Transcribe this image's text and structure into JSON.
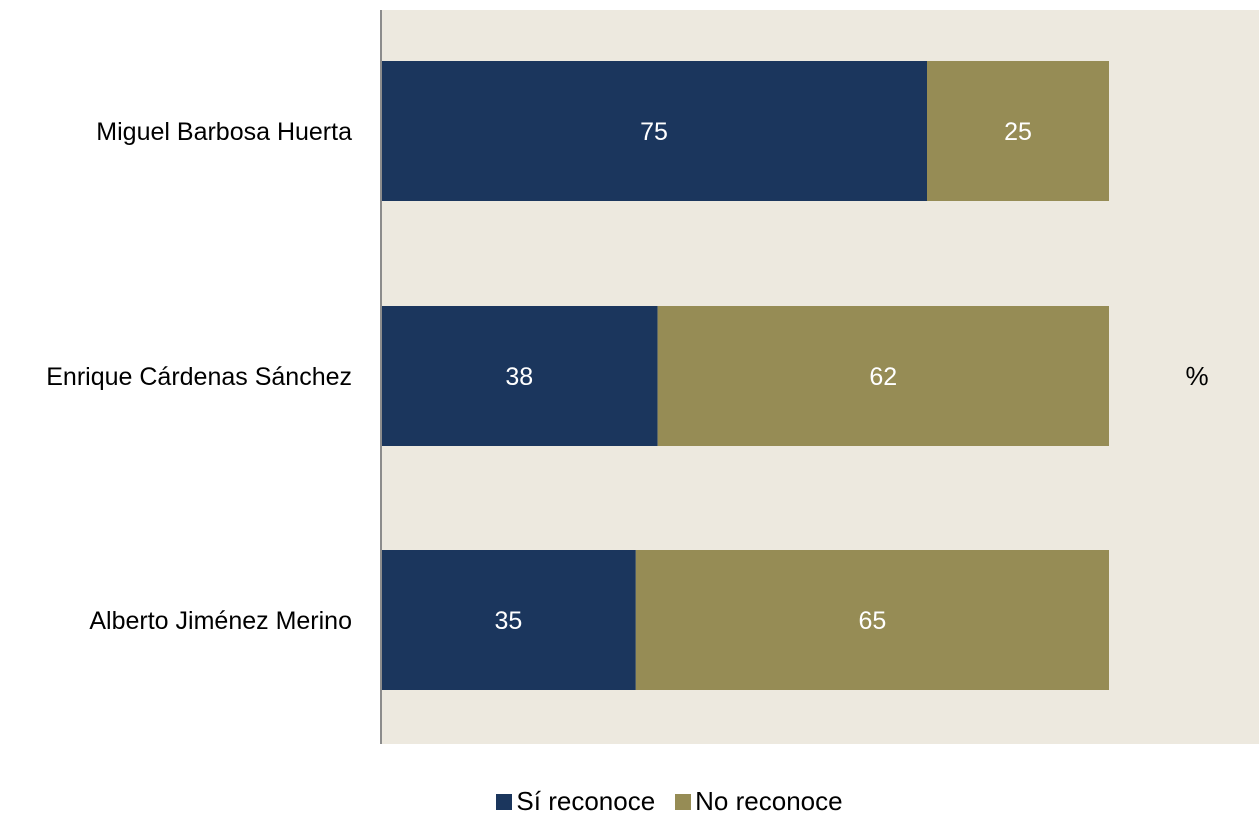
{
  "chart_data": {
    "type": "bar",
    "orientation": "horizontal",
    "stacked": true,
    "categories": [
      "Miguel Barbosa Huerta",
      "Enrique Cárdenas Sánchez",
      "Alberto Jiménez Merino"
    ],
    "series": [
      {
        "name": "Sí reconoce",
        "values": [
          75,
          38,
          35
        ],
        "color": "#1b365d"
      },
      {
        "name": "No reconoce",
        "values": [
          25,
          62,
          65
        ],
        "color": "#968c55"
      }
    ],
    "xlim": [
      0,
      100
    ],
    "unit_label": "%",
    "legend_position": "bottom",
    "grid": false,
    "plot_background": "#ede9df"
  }
}
